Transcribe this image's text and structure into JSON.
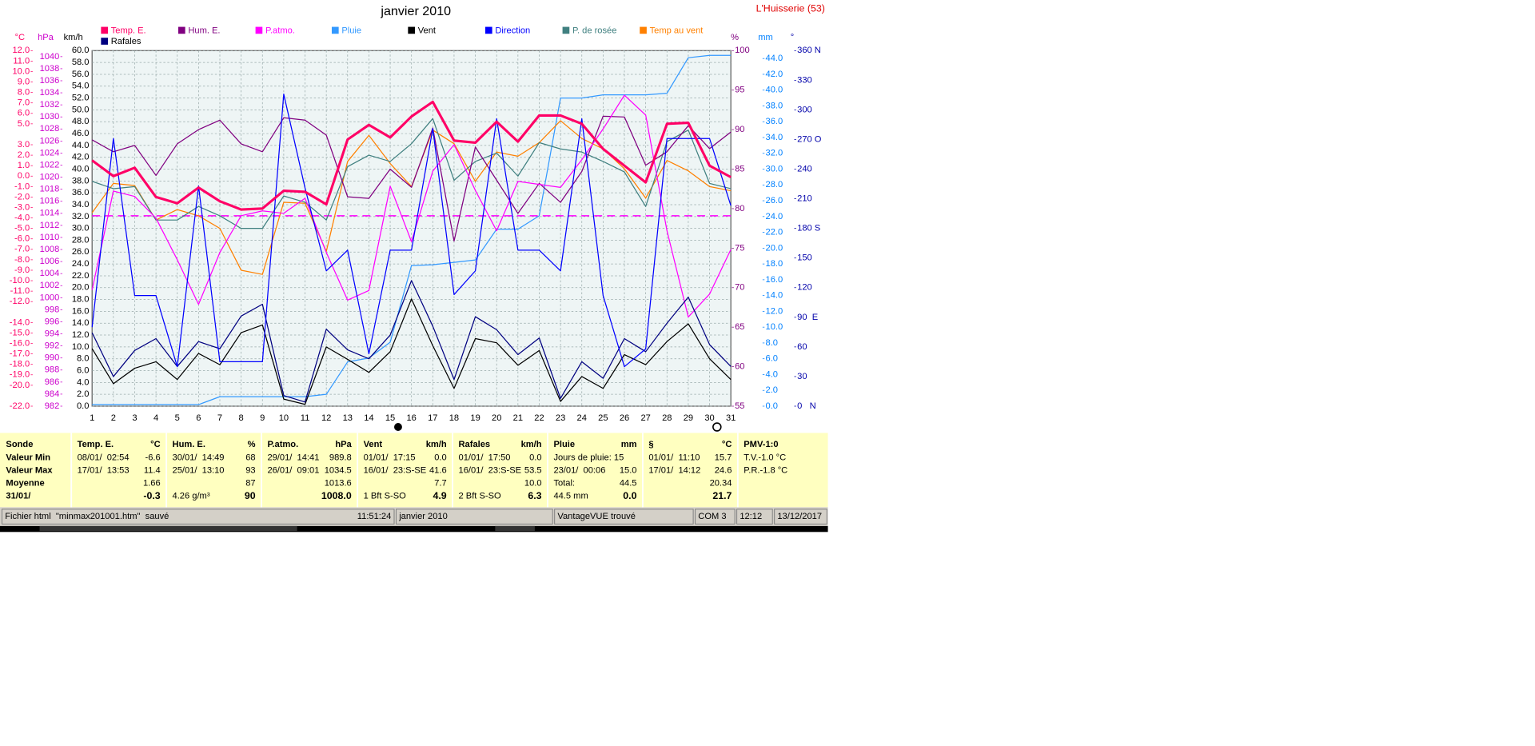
{
  "chart_data": {
    "type": "line",
    "title": "janvier 2010",
    "subtitle": "L'Huisserie (53)",
    "x": [
      1,
      2,
      3,
      4,
      5,
      6,
      7,
      8,
      9,
      10,
      11,
      12,
      13,
      14,
      15,
      16,
      17,
      18,
      19,
      20,
      21,
      22,
      23,
      24,
      25,
      26,
      27,
      28,
      29,
      30,
      31
    ],
    "xlim": [
      1,
      31
    ],
    "grid": true,
    "axes": {
      "temp": {
        "label": "°C",
        "color": "#ff0066",
        "lim": [
          -22,
          12
        ],
        "ticks": [
          {
            "value": 12,
            "label": "12.0"
          },
          {
            "value": 11,
            "label": "11.0"
          },
          {
            "value": 10,
            "label": "10.0"
          },
          {
            "value": 9,
            "label": "9.0"
          },
          {
            "value": 8,
            "label": "8.0"
          },
          {
            "value": 7,
            "label": "7.0"
          },
          {
            "value": 6,
            "label": "6.0"
          },
          {
            "value": 5,
            "label": "5.0"
          },
          {
            "value": 3,
            "label": "3.0"
          },
          {
            "value": 2,
            "label": "2.0"
          },
          {
            "value": 1,
            "label": "1.0"
          },
          {
            "value": 0,
            "label": "0.0"
          },
          {
            "value": -1,
            "label": "-1.0"
          },
          {
            "value": -2,
            "label": "-2.0"
          },
          {
            "value": -3,
            "label": "-3.0"
          },
          {
            "value": -4,
            "label": "-4.0"
          },
          {
            "value": -5,
            "label": "-5.0"
          },
          {
            "value": -6,
            "label": "-6.0"
          },
          {
            "value": -7,
            "label": "-7.0"
          },
          {
            "value": -8,
            "label": "-8.0"
          },
          {
            "value": -9,
            "label": "-9.0"
          },
          {
            "value": -10,
            "label": "-10.0"
          },
          {
            "value": -11,
            "label": "-11.0"
          },
          {
            "value": -12,
            "label": "-12.0"
          },
          {
            "value": -14,
            "label": "-14.0"
          },
          {
            "value": -15,
            "label": "-15.0"
          },
          {
            "value": -16,
            "label": "-16.0"
          },
          {
            "value": -17,
            "label": "-17.0"
          },
          {
            "value": -18,
            "label": "-18.0"
          },
          {
            "value": -19,
            "label": "-19.0"
          },
          {
            "value": -20,
            "label": "-20.0"
          },
          {
            "value": -22,
            "label": "-22.0"
          }
        ]
      },
      "hpa": {
        "label": "hPa",
        "color": "#cc00cc",
        "lim": [
          982,
          1041
        ],
        "ticks": [
          1040,
          1038,
          1036,
          1034,
          1032,
          1030,
          1028,
          1026,
          1024,
          1022,
          1020,
          1018,
          1016,
          1014,
          1012,
          1010,
          1008,
          1006,
          1004,
          1002,
          1000,
          998,
          996,
          994,
          992,
          990,
          988,
          986,
          984,
          982
        ]
      },
      "kmh": {
        "label": "km/h",
        "color": "#000000",
        "lim": [
          0,
          60
        ],
        "ticks": [
          {
            "value": 60,
            "label": "60.0"
          },
          {
            "value": 58,
            "label": "58.0"
          },
          {
            "value": 56,
            "label": "56.0"
          },
          {
            "value": 54,
            "label": "54.0"
          },
          {
            "value": 52,
            "label": "52.0"
          },
          {
            "value": 50,
            "label": "50.0"
          },
          {
            "value": 48,
            "label": "48.0"
          },
          {
            "value": 46,
            "label": "46.0"
          },
          {
            "value": 44,
            "label": "44.0"
          },
          {
            "value": 42,
            "label": "42.0"
          },
          {
            "value": 40,
            "label": "40.0"
          },
          {
            "value": 38,
            "label": "38.0"
          },
          {
            "value": 36,
            "label": "36.0"
          },
          {
            "value": 34,
            "label": "34.0"
          },
          {
            "value": 32,
            "label": "32.0"
          },
          {
            "value": 30,
            "label": "30.0"
          },
          {
            "value": 28,
            "label": "28.0"
          },
          {
            "value": 26,
            "label": "26.0"
          },
          {
            "value": 24,
            "label": "24.0"
          },
          {
            "value": 22,
            "label": "22.0"
          },
          {
            "value": 20,
            "label": "20.0"
          },
          {
            "value": 18,
            "label": "18.0"
          },
          {
            "value": 16,
            "label": "16.0"
          },
          {
            "value": 14,
            "label": "14.0"
          },
          {
            "value": 12,
            "label": "12.0"
          },
          {
            "value": 10,
            "label": "10.0"
          },
          {
            "value": 8,
            "label": "8.0"
          },
          {
            "value": 6,
            "label": "6.0"
          },
          {
            "value": 4,
            "label": "4.0"
          },
          {
            "value": 2,
            "label": "2.0"
          },
          {
            "value": 0,
            "label": "0.0"
          }
        ]
      },
      "pct": {
        "label": "%",
        "color": "#800080",
        "lim": [
          55,
          100
        ],
        "ticks": [
          100,
          95,
          90,
          85,
          80,
          75,
          70,
          65,
          60,
          55
        ]
      },
      "mm": {
        "label": "mm",
        "color": "#0080ff",
        "lim": [
          0,
          45
        ],
        "ticks": [
          {
            "value": 44,
            "label": "44.0"
          },
          {
            "value": 42,
            "label": "42.0"
          },
          {
            "value": 40,
            "label": "40.0"
          },
          {
            "value": 38,
            "label": "38.0"
          },
          {
            "value": 36,
            "label": "36.0"
          },
          {
            "value": 34,
            "label": "34.0"
          },
          {
            "value": 32,
            "label": "32.0"
          },
          {
            "value": 30,
            "label": "30.0"
          },
          {
            "value": 28,
            "label": "28.0"
          },
          {
            "value": 26,
            "label": "26.0"
          },
          {
            "value": 24,
            "label": "24.0"
          },
          {
            "value": 22,
            "label": "22.0"
          },
          {
            "value": 20,
            "label": "20.0"
          },
          {
            "value": 18,
            "label": "18.0"
          },
          {
            "value": 16,
            "label": "16.0"
          },
          {
            "value": 14,
            "label": "14.0"
          },
          {
            "value": 12,
            "label": "12.0"
          },
          {
            "value": 10,
            "label": "10.0"
          },
          {
            "value": 8,
            "label": "8.0"
          },
          {
            "value": 6,
            "label": "6.0"
          },
          {
            "value": 4,
            "label": "4.0"
          },
          {
            "value": 2,
            "label": "2.0"
          },
          {
            "value": 0,
            "label": "0.0"
          }
        ]
      },
      "deg": {
        "label": "°",
        "color": "#0000aa",
        "lim": [
          0,
          360
        ],
        "ticks": [
          {
            "value": 360,
            "label": "360 N"
          },
          330,
          300,
          {
            "value": 270,
            "label": "270 O"
          },
          240,
          210,
          {
            "value": 180,
            "label": "180 S"
          },
          150,
          120,
          {
            "value": 90,
            "label": "90  E"
          },
          60,
          30,
          {
            "value": 0,
            "label": "0   N"
          }
        ]
      }
    },
    "series": [
      {
        "name": "Temp. E.",
        "color": "#ff0066",
        "axis": "temp",
        "width": 2.5,
        "values": [
          1.5,
          0.0,
          0.8,
          -2.0,
          -2.6,
          -1.1,
          -2.4,
          -3.2,
          -3.1,
          -1.4,
          -1.5,
          -2.7,
          3.5,
          4.9,
          3.7,
          5.7,
          7.1,
          3.4,
          3.2,
          5.2,
          3.3,
          5.8,
          5.8,
          5.0,
          2.6,
          1.0,
          -0.6,
          5.0,
          5.1,
          1.0,
          -0.1
        ]
      },
      {
        "name": "Hum. E.",
        "color": "#800080",
        "axis": "pct",
        "values": [
          88.7,
          87.2,
          88.0,
          84.2,
          88.2,
          90.0,
          91.2,
          88.2,
          87.2,
          91.5,
          91.2,
          89.3,
          81.5,
          81.3,
          85.0,
          82.7,
          90.2,
          75.9,
          87.8,
          83.6,
          79.4,
          83.2,
          80.8,
          84.7,
          91.7,
          91.6,
          85.5,
          87.2,
          90.5,
          87.6,
          89.7
        ]
      },
      {
        "name": "P.atmo.",
        "color": "#ff00ff",
        "axis": "hpa",
        "values": [
          1001.3,
          1017.7,
          1016.8,
          1013.2,
          1006.3,
          998.9,
          1007.5,
          1013.6,
          1014.4,
          1014.0,
          1016.5,
          1007.5,
          999.6,
          1001.2,
          1018.5,
          1009.3,
          1021.0,
          1025.4,
          1017.8,
          1011.1,
          1019.3,
          1018.8,
          1018.3,
          1022.9,
          1028.0,
          1033.6,
          1030.3,
          1011.1,
          996.8,
          1000.6,
          1008.0
        ]
      },
      {
        "name": "Pluie",
        "color": "#3399ff",
        "axis": "mm",
        "values": [
          0.2,
          0.2,
          0.2,
          0.2,
          0.2,
          0.2,
          1.2,
          1.2,
          1.2,
          1.2,
          1.2,
          1.5,
          5.6,
          6.1,
          8.1,
          17.8,
          17.9,
          18.2,
          18.5,
          22.4,
          22.4,
          24.1,
          39.0,
          39.0,
          39.4,
          39.4,
          39.4,
          39.6,
          44.1,
          44.4,
          44.4
        ]
      },
      {
        "name": "Vent",
        "color": "#000000",
        "axis": "kmh",
        "values": [
          9.7,
          3.8,
          6.4,
          7.5,
          4.5,
          8.9,
          7.0,
          12.4,
          13.7,
          1.2,
          0.3,
          10.0,
          7.9,
          5.7,
          9.2,
          18.1,
          10.2,
          3.0,
          11.4,
          10.7,
          6.9,
          9.4,
          0.8,
          5.0,
          3.0,
          8.7,
          7.0,
          10.9,
          13.9,
          8.0,
          4.5
        ]
      },
      {
        "name": "Direction",
        "color": "#0000ff",
        "axis": "deg",
        "values": [
          80,
          271,
          112,
          112,
          40,
          223,
          45,
          45,
          45,
          316,
          221,
          137,
          158,
          53,
          158,
          158,
          281,
          113,
          137,
          291,
          158,
          158,
          137,
          291,
          112,
          40,
          58,
          271,
          271,
          271,
          203
        ]
      },
      {
        "name": "P. de rosée",
        "color": "#408080",
        "axis": "temp",
        "values": [
          -0.5,
          -1.2,
          -1.0,
          -4.2,
          -4.2,
          -2.9,
          -3.8,
          -5.0,
          -5.0,
          -1.9,
          -2.5,
          -4.2,
          0.9,
          2.0,
          1.4,
          3.1,
          5.5,
          -0.4,
          1.4,
          2.2,
          0.0,
          3.2,
          2.6,
          2.3,
          1.4,
          0.4,
          -2.9,
          3.3,
          4.4,
          -0.7,
          -1.2
        ]
      },
      {
        "name": "Temp au vent",
        "color": "#ff8000",
        "axis": "temp",
        "values": [
          -3.5,
          -0.7,
          -0.9,
          -4.2,
          -3.2,
          -3.8,
          -5.0,
          -9.0,
          -9.4,
          -2.5,
          -2.6,
          -7.2,
          1.4,
          3.9,
          1.2,
          -1.0,
          4.4,
          3.1,
          -0.5,
          2.3,
          1.9,
          3.2,
          5.3,
          3.6,
          2.6,
          0.7,
          -2.1,
          1.5,
          0.5,
          -1.0,
          -1.4
        ]
      },
      {
        "name": "Rafales",
        "color": "#000080",
        "axis": "kmh",
        "values": [
          12.4,
          5.0,
          9.4,
          11.4,
          6.7,
          10.9,
          9.7,
          15.2,
          17.2,
          1.8,
          0.7,
          13.0,
          9.5,
          8.0,
          12.0,
          21.2,
          13.5,
          4.5,
          15.1,
          12.9,
          8.7,
          11.5,
          1.3,
          7.5,
          4.7,
          11.4,
          9.2,
          14.0,
          18.4,
          10.4,
          6.7
        ]
      }
    ]
  },
  "table": {
    "columns": [
      {
        "header": "Sonde",
        "cells": [
          {
            "left": "Valeur Min"
          },
          {
            "left": "Valeur Max"
          },
          {
            "left": "Moyenne"
          },
          {
            "left": "31/01/"
          }
        ]
      },
      {
        "header": "Temp. E.",
        "unit": "°C",
        "cells": [
          {
            "left": "08/01/  02:54",
            "right": "-6.6"
          },
          {
            "left": "17/01/  13:53",
            "right": "11.4"
          },
          {
            "right": "1.66"
          },
          {
            "right": "-0.3"
          }
        ]
      },
      {
        "header": "Hum. E.",
        "unit": "%",
        "cells": [
          {
            "left": "30/01/  14:49",
            "right": "68"
          },
          {
            "left": "25/01/  13:10",
            "right": "93"
          },
          {
            "right": "87"
          },
          {
            "left": "4.26 g/m³",
            "right": "90"
          }
        ]
      },
      {
        "header": "P.atmo.",
        "unit": "hPa",
        "cells": [
          {
            "left": "29/01/  14:41",
            "right": "989.8"
          },
          {
            "left": "26/01/  09:01",
            "right": "1034.5"
          },
          {
            "right": "1013.6"
          },
          {
            "right": "1008.0"
          }
        ]
      },
      {
        "header": "Vent",
        "unit": "km/h",
        "cells": [
          {
            "left": "01/01/  17:15",
            "right": "0.0"
          },
          {
            "left": "16/01/  23:S-SE",
            "right": "41.6"
          },
          {
            "right": "7.7"
          },
          {
            "left": "1 Bft S-SO",
            "right": "4.9"
          }
        ]
      },
      {
        "header": "Rafales",
        "unit": "km/h",
        "cells": [
          {
            "left": "01/01/  17:50",
            "right": "0.0"
          },
          {
            "left": "16/01/  23:S-SE",
            "right": "53.5"
          },
          {
            "right": "10.0"
          },
          {
            "left": "2 Bft S-SO",
            "right": "6.3"
          }
        ]
      },
      {
        "header": "Pluie",
        "unit": "mm",
        "cells": [
          {
            "left": "Jours de pluie: 15"
          },
          {
            "left": "23/01/  00:06",
            "right": "15.0"
          },
          {
            "left": "Total:",
            "right": "44.5"
          },
          {
            "left": "44.5 mm",
            "right": "0.0"
          }
        ]
      },
      {
        "header": "§",
        "unit": "°C",
        "cells": [
          {
            "left": "01/01/  11:10",
            "right": "15.7"
          },
          {
            "left": "17/01/  14:12",
            "right": "24.6"
          },
          {
            "right": "20.34"
          },
          {
            "right": "21.7"
          }
        ]
      },
      {
        "header": "PMV-1:0",
        "cells": [
          {
            "left": "T.V.-1.0 °C"
          },
          {
            "left": "P.R.-1.8 °C"
          }
        ]
      }
    ]
  },
  "status": [
    "Fichier html  \"minmax201001.htm\"  sauvé",
    "11:51:24",
    "janvier 2010",
    "VantageVUE trouvé",
    "COM 3",
    "12:12",
    "13/12/2017"
  ]
}
